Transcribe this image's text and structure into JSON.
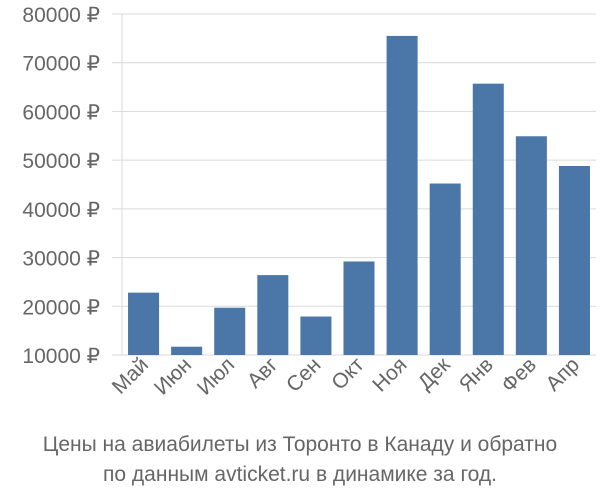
{
  "chart_data": {
    "type": "bar",
    "categories": [
      "Май",
      "Июн",
      "Июл",
      "Авг",
      "Сен",
      "Окт",
      "Ноя",
      "Дек",
      "Янв",
      "Фев",
      "Апр"
    ],
    "values": [
      22800,
      11700,
      19700,
      26400,
      17900,
      29200,
      75500,
      45200,
      65700,
      54900,
      48800
    ],
    "ylim": [
      10000,
      80000
    ],
    "yticks": [
      10000,
      20000,
      30000,
      40000,
      50000,
      60000,
      70000,
      80000
    ],
    "ytick_labels": [
      "10000 ₽",
      "20000 ₽",
      "30000 ₽",
      "40000 ₽",
      "50000 ₽",
      "60000 ₽",
      "70000 ₽",
      "80000 ₽"
    ],
    "bar_color": "#4a76a8",
    "grid": true,
    "xlabel": "",
    "ylabel": ""
  },
  "caption": {
    "line1": "Цены на авиабилеты из Торонто в Канаду и обратно",
    "line2": "по данным avticket.ru в динамике за год."
  }
}
